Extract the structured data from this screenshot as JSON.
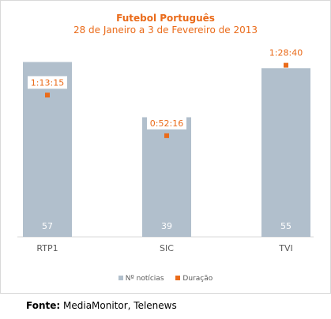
{
  "chart_data": {
    "type": "bar",
    "title": "Futebol Português",
    "subtitle": "28 de Janeiro a 3 de Fevereiro de 2013",
    "categories": [
      "RTP1",
      "SIC",
      "TVI"
    ],
    "series": [
      {
        "name": "Nº notícias",
        "values": [
          57,
          39,
          55
        ],
        "color": "#b1bfcc",
        "kind": "bar"
      },
      {
        "name": "Duração",
        "values": [
          "1:13:15",
          "0:52:16",
          "1:28:40"
        ],
        "color": "#ea6b1a",
        "kind": "point"
      }
    ],
    "ylim": [
      0,
      61
    ],
    "duration_ylim_seconds": [
      0,
      5800
    ],
    "grid": false,
    "legend": "bottom"
  },
  "source": {
    "label": "Fonte:",
    "text": "MediaMonitor, Telenews"
  }
}
